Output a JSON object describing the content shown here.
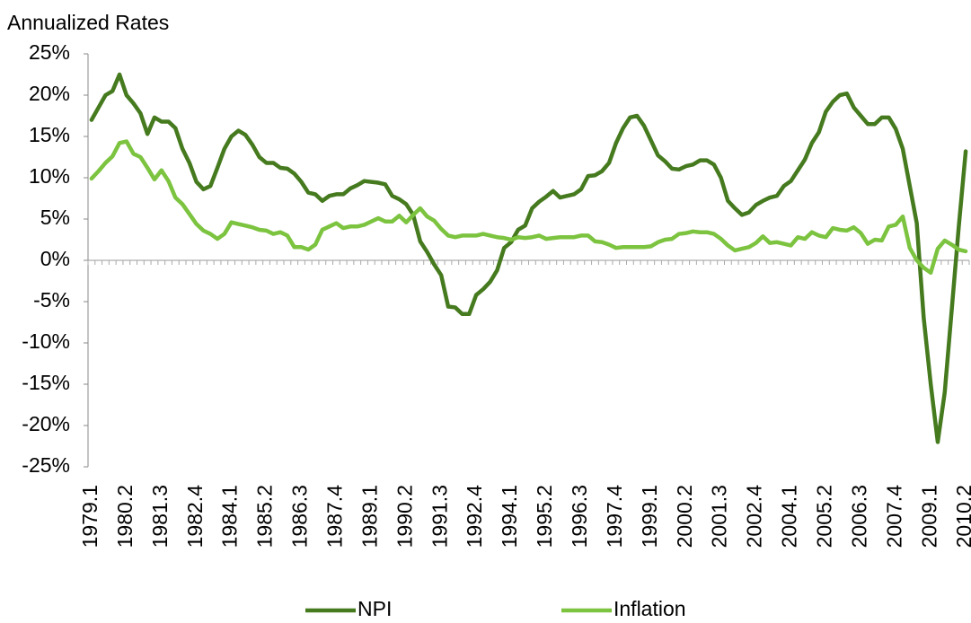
{
  "chart_data": {
    "type": "line",
    "title": "Annualized Rates",
    "categories": [
      "1979.1",
      null,
      null,
      null,
      null,
      "1980.2",
      null,
      null,
      null,
      null,
      "1981.3",
      null,
      null,
      null,
      null,
      "1982.4",
      null,
      null,
      null,
      null,
      "1984.1",
      null,
      null,
      null,
      null,
      "1985.2",
      null,
      null,
      null,
      null,
      "1986.3",
      null,
      null,
      null,
      null,
      "1987.4",
      null,
      null,
      null,
      null,
      "1989.1",
      null,
      null,
      null,
      null,
      "1990.2",
      null,
      null,
      null,
      null,
      "1991.3",
      null,
      null,
      null,
      null,
      "1992.4",
      null,
      null,
      null,
      null,
      "1994.1",
      null,
      null,
      null,
      null,
      "1995.2",
      null,
      null,
      null,
      null,
      "1996.3",
      null,
      null,
      null,
      null,
      "1997.4",
      null,
      null,
      null,
      null,
      "1999.1",
      null,
      null,
      null,
      null,
      "2000.2",
      null,
      null,
      null,
      null,
      "2001.3",
      null,
      null,
      null,
      null,
      "2002.4",
      null,
      null,
      null,
      null,
      "2004.1",
      null,
      null,
      null,
      null,
      "2005.2",
      null,
      null,
      null,
      null,
      "2006.3",
      null,
      null,
      null,
      null,
      "2007.4",
      null,
      null,
      null,
      null,
      "2009.1",
      null,
      null,
      null,
      null,
      "2010.2"
    ],
    "series": [
      {
        "name": "NPI",
        "color": "#467a1f",
        "values": [
          17.0,
          18.5,
          20.0,
          20.5,
          22.5,
          20.0,
          19.0,
          17.8,
          15.3,
          17.3,
          16.8,
          16.8,
          16.0,
          13.5,
          11.8,
          9.5,
          8.6,
          9.0,
          11.2,
          13.5,
          15.0,
          15.7,
          15.2,
          14.0,
          12.5,
          11.8,
          11.8,
          11.2,
          11.1,
          10.5,
          9.5,
          8.2,
          8.0,
          7.2,
          7.8,
          8.0,
          8.0,
          8.7,
          9.1,
          9.6,
          9.5,
          9.4,
          9.2,
          7.8,
          7.4,
          6.8,
          5.5,
          2.3,
          1.0,
          -0.5,
          -1.8,
          -5.6,
          -5.7,
          -6.5,
          -6.5,
          -4.2,
          -3.5,
          -2.6,
          -1.2,
          1.5,
          2.2,
          3.7,
          4.2,
          6.3,
          7.1,
          7.7,
          8.4,
          7.6,
          7.8,
          8.0,
          8.6,
          10.2,
          10.3,
          10.8,
          11.8,
          14.2,
          16.0,
          17.3,
          17.5,
          16.3,
          14.5,
          12.7,
          12.0,
          11.1,
          11.0,
          11.4,
          11.6,
          12.1,
          12.1,
          11.6,
          10.0,
          7.2,
          6.3,
          5.5,
          5.8,
          6.7,
          7.2,
          7.6,
          7.8,
          9.0,
          9.6,
          10.9,
          12.2,
          14.2,
          15.5,
          18.0,
          19.2,
          20.0,
          20.2,
          18.5,
          17.5,
          16.5,
          16.5,
          17.3,
          17.3,
          15.9,
          13.5,
          9.0,
          4.5,
          -7.0,
          -15.0,
          -22.0,
          -16.0,
          -6.0,
          4.0,
          13.2
        ]
      },
      {
        "name": "Inflation",
        "color": "#7cc440",
        "values": [
          9.9,
          10.8,
          11.8,
          12.6,
          14.2,
          14.4,
          12.9,
          12.5,
          11.2,
          9.8,
          10.9,
          9.6,
          7.6,
          6.8,
          5.6,
          4.4,
          3.6,
          3.2,
          2.6,
          3.2,
          4.6,
          4.4,
          4.2,
          4.0,
          3.7,
          3.6,
          3.2,
          3.4,
          3.0,
          1.6,
          1.6,
          1.3,
          1.9,
          3.7,
          4.1,
          4.5,
          3.9,
          4.1,
          4.1,
          4.3,
          4.7,
          5.1,
          4.7,
          4.7,
          5.4,
          4.6,
          5.5,
          6.3,
          5.3,
          4.8,
          3.8,
          3.0,
          2.8,
          3.0,
          3.0,
          3.0,
          3.2,
          3.0,
          2.8,
          2.7,
          2.5,
          2.8,
          2.7,
          2.8,
          3.0,
          2.6,
          2.7,
          2.8,
          2.8,
          2.8,
          3.0,
          3.0,
          2.3,
          2.2,
          1.9,
          1.5,
          1.6,
          1.6,
          1.6,
          1.6,
          1.7,
          2.2,
          2.5,
          2.6,
          3.2,
          3.3,
          3.5,
          3.4,
          3.4,
          3.2,
          2.6,
          1.8,
          1.2,
          1.4,
          1.6,
          2.1,
          2.9,
          2.1,
          2.2,
          2.0,
          1.8,
          2.8,
          2.6,
          3.4,
          3.0,
          2.8,
          3.9,
          3.7,
          3.6,
          4.0,
          3.3,
          2.0,
          2.5,
          2.4,
          4.1,
          4.3,
          5.3,
          1.5,
          0.0,
          -0.9,
          -1.5,
          1.4,
          2.4,
          1.9,
          1.3,
          1.1
        ]
      }
    ],
    "ylim": [
      -25,
      25
    ],
    "yticks": [
      {
        "value": -25,
        "label": "-25%"
      },
      {
        "value": -20,
        "label": "-20%"
      },
      {
        "value": -15,
        "label": "-15%"
      },
      {
        "value": -10,
        "label": "-10%"
      },
      {
        "value": -5,
        "label": "-5%"
      },
      {
        "value": 0,
        "label": "0%"
      },
      {
        "value": 5,
        "label": "5%"
      },
      {
        "value": 10,
        "label": "10%"
      },
      {
        "value": 15,
        "label": "15%"
      },
      {
        "value": 20,
        "label": "20%"
      },
      {
        "value": 25,
        "label": "25%"
      }
    ],
    "grid": false,
    "legend": "bottom"
  }
}
